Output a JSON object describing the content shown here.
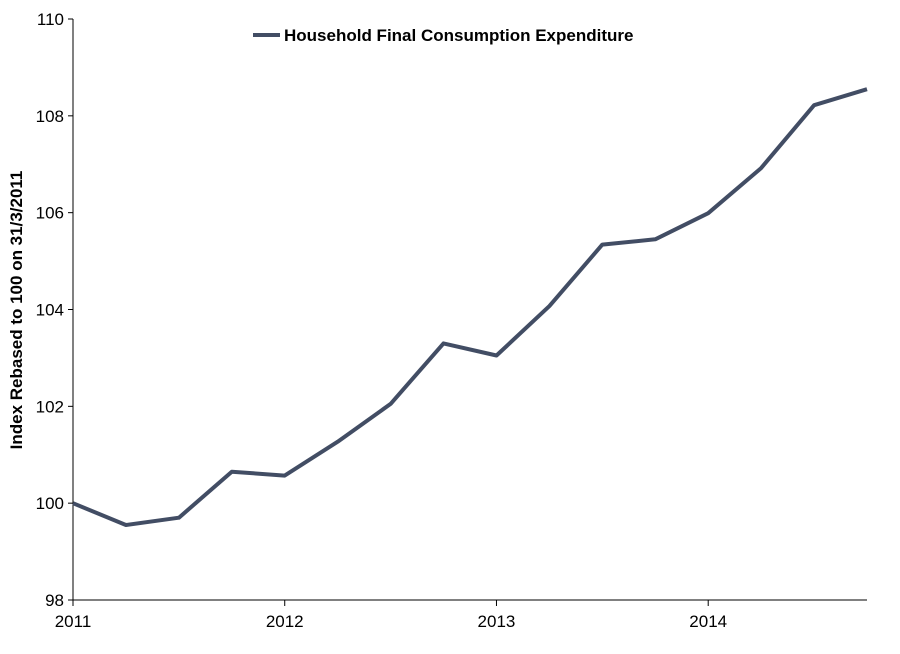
{
  "chart_data": {
    "type": "line",
    "title": "",
    "xlabel": "",
    "ylabel": "Index Rebased to 100 on 31/3/2011",
    "xlim": [
      2011,
      2014.75
    ],
    "ylim": [
      98,
      110
    ],
    "x_ticks": [
      2011,
      2012,
      2013,
      2014
    ],
    "x_tick_labels": [
      "2011",
      "2012",
      "2013",
      "2014"
    ],
    "y_ticks": [
      98,
      100,
      102,
      104,
      106,
      108,
      110
    ],
    "y_tick_labels": [
      "98",
      "100",
      "102",
      "104",
      "106",
      "108",
      "110"
    ],
    "grid": false,
    "legend_position": "top-center",
    "series": [
      {
        "name": "Household Final Consumption Expenditure",
        "color": "#424d64",
        "x": [
          2011,
          2011.25,
          2011.5,
          2011.75,
          2012,
          2012.25,
          2012.5,
          2012.75,
          2013,
          2013.25,
          2013.5,
          2013.75,
          2014,
          2014.25,
          2014.5,
          2014.75
        ],
        "values": [
          100.0,
          99.55,
          99.7,
          100.65,
          100.57,
          101.27,
          102.05,
          103.3,
          103.05,
          104.07,
          105.34,
          105.45,
          105.99,
          106.92,
          108.22,
          108.55
        ]
      }
    ]
  }
}
